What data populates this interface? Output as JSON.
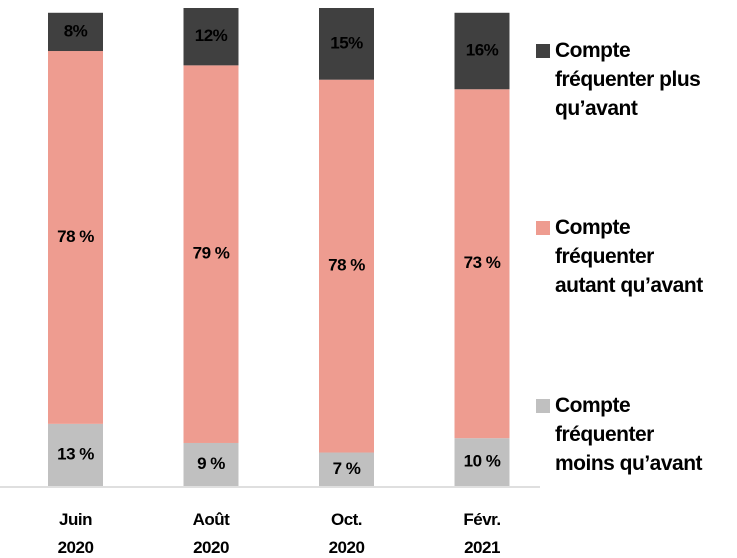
{
  "chart_data": {
    "type": "stacked_bar",
    "categories": [
      "Juin\n2020",
      "Août\n2020",
      "Oct.\n2020",
      "Févr.\n2021"
    ],
    "series": [
      {
        "name": "Compte\nfréquenter\nmoins qu’avant",
        "color": "#c0c0c0",
        "values": [
          13,
          9,
          7,
          10
        ],
        "value_labels": [
          "13 %",
          "9 %",
          "7 %",
          "10 %"
        ]
      },
      {
        "name": "Compte\nfréquenter\nautant qu’avant",
        "color": "#ee9c90",
        "values": [
          78,
          79,
          78,
          73
        ],
        "value_labels": [
          "78 %",
          "79 %",
          "78 %",
          "73 %"
        ]
      },
      {
        "name": "Compte\nfréquenter plus\nqu’avant",
        "color": "#404040",
        "values": [
          8,
          12,
          15,
          16
        ],
        "value_labels": [
          "8%",
          "12%",
          "15%",
          "16%"
        ]
      }
    ],
    "legend": "right"
  }
}
